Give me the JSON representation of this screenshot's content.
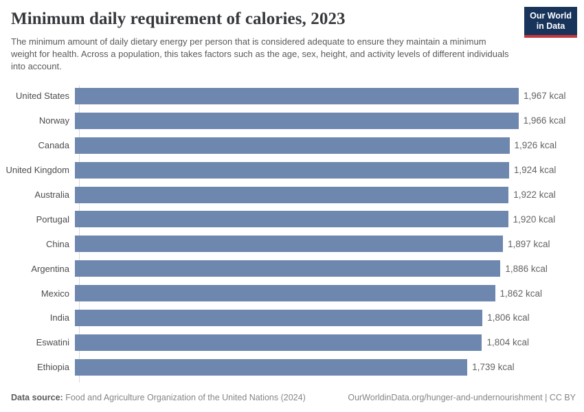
{
  "header": {
    "title": "Minimum daily requirement of calories, 2023",
    "subtitle": "The minimum amount of daily dietary energy per person that is considered adequate to ensure they maintain a minimum weight for health. Across a population, this takes factors such as the age, sex, height, and activity levels of different individuals into account.",
    "logo": {
      "line1": "Our World",
      "line2": "in Data"
    }
  },
  "chart_data": {
    "type": "bar",
    "orientation": "horizontal",
    "title": "Minimum daily requirement of calories, 2023",
    "unit": "kcal",
    "xlim": [
      0,
      1967
    ],
    "grid": false,
    "bar_color": "#6e87ae",
    "categories": [
      "United States",
      "Norway",
      "Canada",
      "United Kingdom",
      "Australia",
      "Portugal",
      "China",
      "Argentina",
      "Mexico",
      "India",
      "Eswatini",
      "Ethiopia"
    ],
    "values": [
      1967,
      1966,
      1926,
      1924,
      1922,
      1920,
      1897,
      1886,
      1862,
      1806,
      1804,
      1739
    ],
    "value_labels": [
      "1,967 kcal",
      "1,966 kcal",
      "1,926 kcal",
      "1,924 kcal",
      "1,922 kcal",
      "1,920 kcal",
      "1,897 kcal",
      "1,886 kcal",
      "1,862 kcal",
      "1,806 kcal",
      "1,804 kcal",
      "1,739 kcal"
    ]
  },
  "footer": {
    "source_label": "Data source:",
    "source_text": "Food and Agriculture Organization of the United Nations (2024)",
    "credit": "OurWorldinData.org/hunger-and-undernourishment | CC BY"
  },
  "colors": {
    "bar": "#6e87ae",
    "axis": "#d9d9d9",
    "title_text": "#35373c",
    "subtitle_text": "#595959",
    "logo_bg": "#18345a",
    "logo_accent": "#c5383c"
  }
}
